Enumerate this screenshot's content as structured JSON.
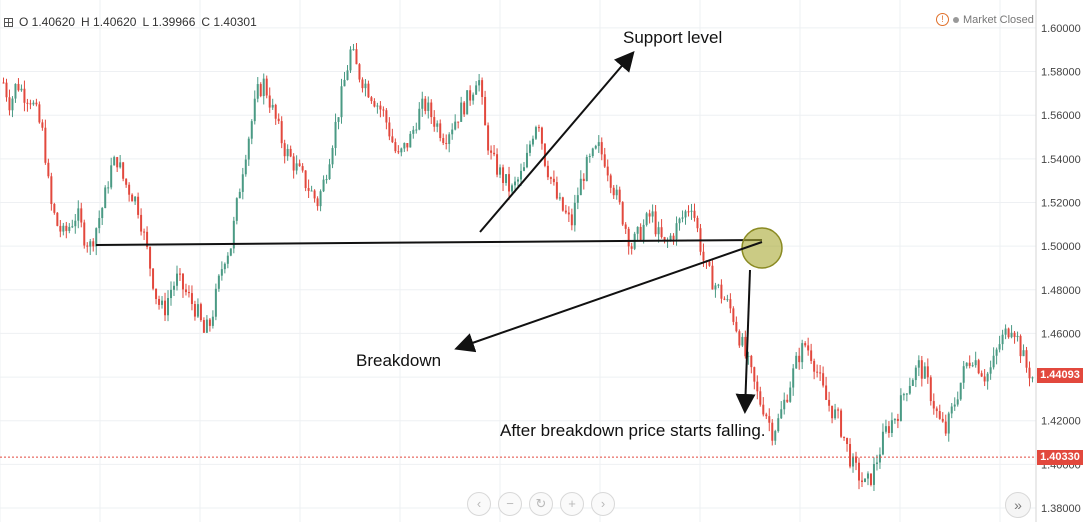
{
  "ohlc": {
    "open": "O 1.40620",
    "high": "H 1.40620",
    "low": "L 1.39966",
    "close": "C 1.40301"
  },
  "status": {
    "market": "Market Closed",
    "warn_icon": "!"
  },
  "price_tags": [
    {
      "label": "1.44093",
      "price": 1.44093,
      "color": "#e2483d"
    },
    {
      "label": "1.40330",
      "price": 1.4033,
      "color": "#e2483d"
    }
  ],
  "annotations": {
    "support": "Support level",
    "breakdown": "Breakdown",
    "after": "After breakdown price starts falling."
  },
  "navigation": {
    "back": "‹",
    "minus": "−",
    "reset": "↻",
    "plus": "+",
    "next": "›",
    "forward": "»"
  },
  "chart_data": {
    "type": "candlestick",
    "y_range": [
      1.38,
      1.605
    ],
    "y_ticks": [
      "1.38000",
      "1.40000",
      "1.42000",
      "1.44000",
      "1.46000",
      "1.48000",
      "1.50000",
      "1.52000",
      "1.54000",
      "1.56000",
      "1.58000",
      "1.60000"
    ],
    "up_color": "#4a9a84",
    "down_color": "#e2483d",
    "support_level": 1.501,
    "price_path": [
      1.575,
      1.565,
      1.575,
      1.57,
      1.568,
      1.56,
      1.55,
      1.52,
      1.51,
      1.505,
      1.51,
      1.515,
      1.505,
      1.5,
      1.51,
      1.52,
      1.535,
      1.54,
      1.53,
      1.525,
      1.52,
      1.505,
      1.49,
      1.475,
      1.47,
      1.48,
      1.485,
      1.48,
      1.475,
      1.47,
      1.46,
      1.465,
      1.48,
      1.495,
      1.5,
      1.52,
      1.54,
      1.555,
      1.57,
      1.575,
      1.565,
      1.555,
      1.545,
      1.54,
      1.535,
      1.53,
      1.525,
      1.52,
      1.53,
      1.545,
      1.56,
      1.575,
      1.59,
      1.58,
      1.575,
      1.57,
      1.565,
      1.56,
      1.55,
      1.54,
      1.545,
      1.55,
      1.56,
      1.565,
      1.56,
      1.555,
      1.55,
      1.555,
      1.56,
      1.565,
      1.57,
      1.58,
      1.555,
      1.54,
      1.535,
      1.53,
      1.525,
      1.53,
      1.535,
      1.55,
      1.56,
      1.54,
      1.53,
      1.52,
      1.515,
      1.51,
      1.525,
      1.535,
      1.54,
      1.545,
      1.54,
      1.53,
      1.52,
      1.51,
      1.5,
      1.505,
      1.51,
      1.515,
      1.505,
      1.5,
      1.505,
      1.51,
      1.515,
      1.52,
      1.505,
      1.49,
      1.485,
      1.48,
      1.475,
      1.47,
      1.46,
      1.45,
      1.44,
      1.43,
      1.425,
      1.415,
      1.42,
      1.43,
      1.44,
      1.45,
      1.455,
      1.45,
      1.44,
      1.43,
      1.425,
      1.42,
      1.41,
      1.4,
      1.395,
      1.39,
      1.395,
      1.405,
      1.415,
      1.42,
      1.425,
      1.435,
      1.44,
      1.445,
      1.44,
      1.43,
      1.42,
      1.415,
      1.425,
      1.435,
      1.445,
      1.45,
      1.445,
      1.44,
      1.445,
      1.455,
      1.46,
      1.465,
      1.455,
      1.445,
      1.44
    ]
  }
}
